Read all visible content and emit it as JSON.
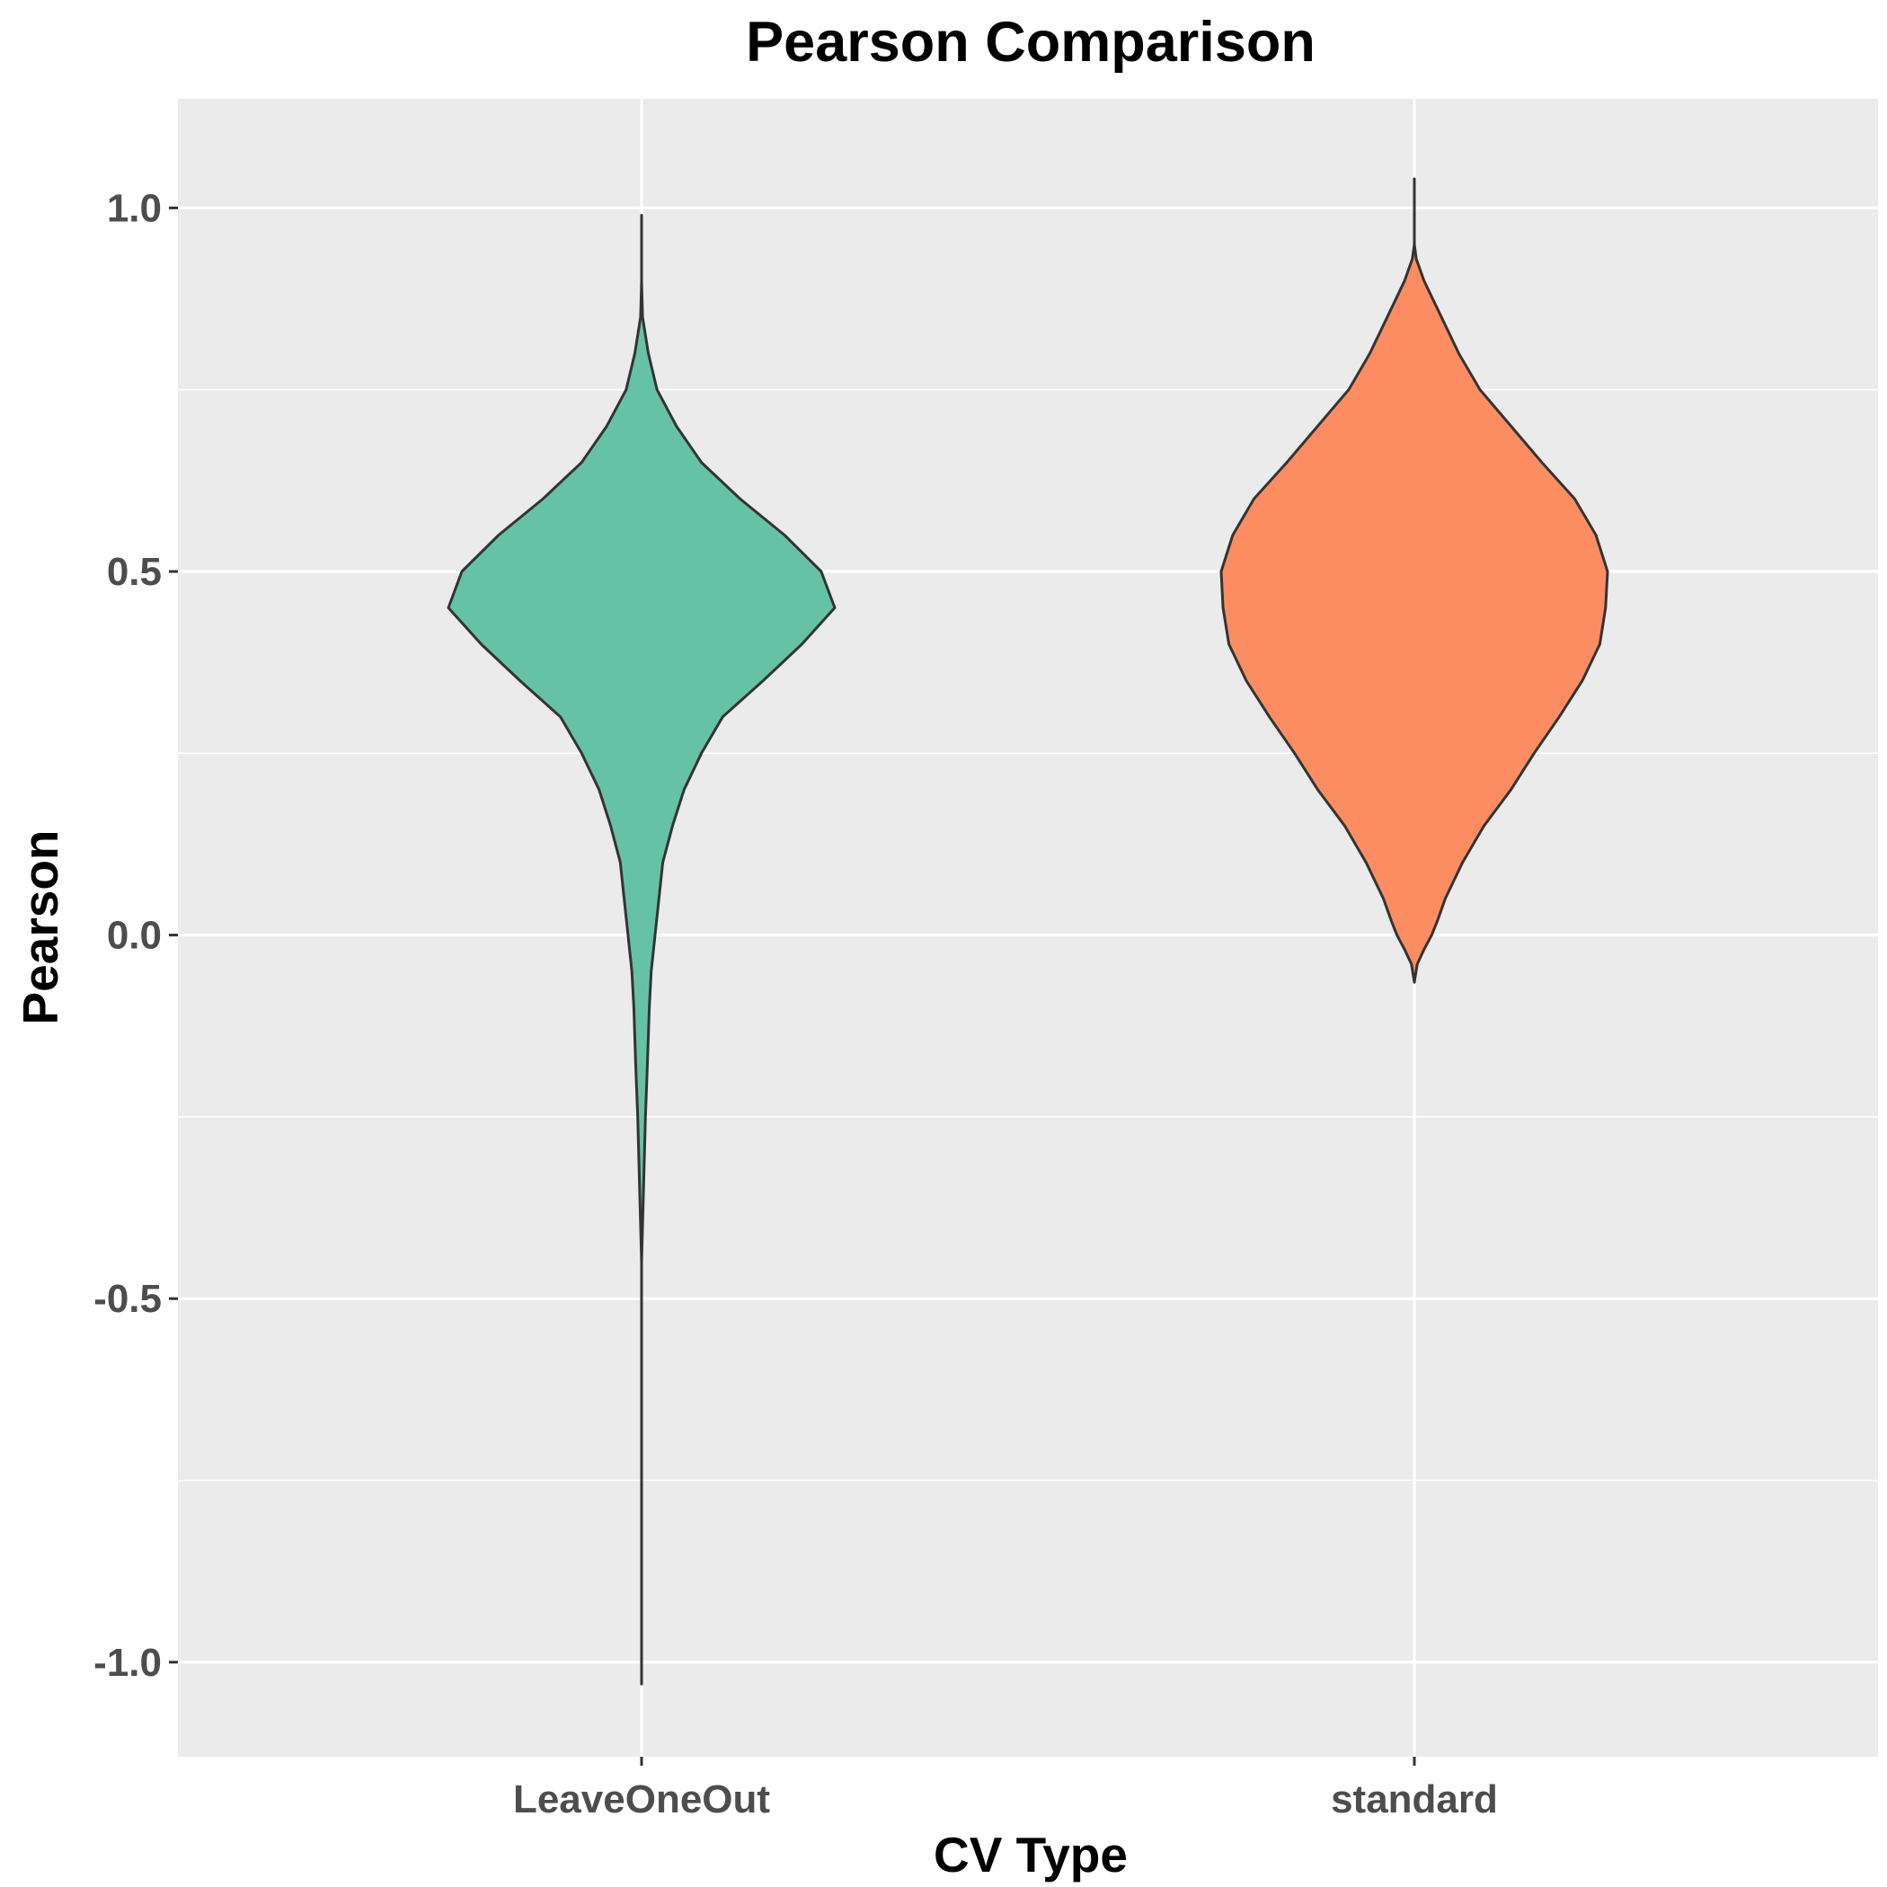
{
  "chart_data": {
    "type": "violin",
    "title": "Pearson Comparison",
    "xlabel": "CV Type",
    "ylabel": "Pearson",
    "categories": [
      "LeaveOneOut",
      "standard"
    ],
    "ylim": [
      -1.13,
      1.15
    ],
    "yticks": [
      -1.0,
      -0.5,
      0.0,
      0.5,
      1.0
    ],
    "ytick_labels": [
      "-1.0",
      "-0.5",
      "0.0",
      "0.5",
      "1.0"
    ],
    "grid": true,
    "legend": "none",
    "colors": {
      "panel": "#ebebeb",
      "outline": "#333333"
    },
    "series": [
      {
        "category": "LeaveOneOut",
        "color": "#66c2a5",
        "min": -1.03,
        "max": 0.99,
        "density_profile": [
          [
            -1.03,
            0.0
          ],
          [
            -0.75,
            0.0
          ],
          [
            -0.45,
            0.0
          ],
          [
            -0.25,
            0.02
          ],
          [
            -0.18,
            0.03
          ],
          [
            -0.1,
            0.04
          ],
          [
            -0.05,
            0.05
          ],
          [
            0.0,
            0.07
          ],
          [
            0.05,
            0.09
          ],
          [
            0.1,
            0.11
          ],
          [
            0.15,
            0.16
          ],
          [
            0.2,
            0.22
          ],
          [
            0.25,
            0.31
          ],
          [
            0.3,
            0.42
          ],
          [
            0.35,
            0.63
          ],
          [
            0.4,
            0.83
          ],
          [
            0.45,
            1.0
          ],
          [
            0.5,
            0.93
          ],
          [
            0.55,
            0.74
          ],
          [
            0.6,
            0.51
          ],
          [
            0.65,
            0.31
          ],
          [
            0.7,
            0.18
          ],
          [
            0.75,
            0.08
          ],
          [
            0.8,
            0.035
          ],
          [
            0.85,
            0.005
          ],
          [
            0.9,
            0.0
          ],
          [
            0.99,
            0.0
          ]
        ]
      },
      {
        "category": "standard",
        "color": "#fc8d62",
        "min": -0.065,
        "max": 1.04,
        "density_profile": [
          [
            -0.065,
            0.0
          ],
          [
            -0.04,
            0.015
          ],
          [
            -0.02,
            0.05
          ],
          [
            0.0,
            0.09
          ],
          [
            0.02,
            0.12
          ],
          [
            0.05,
            0.16
          ],
          [
            0.1,
            0.25
          ],
          [
            0.15,
            0.36
          ],
          [
            0.2,
            0.5
          ],
          [
            0.25,
            0.62
          ],
          [
            0.3,
            0.75
          ],
          [
            0.35,
            0.87
          ],
          [
            0.4,
            0.96
          ],
          [
            0.45,
            0.99
          ],
          [
            0.5,
            1.0
          ],
          [
            0.55,
            0.94
          ],
          [
            0.6,
            0.83
          ],
          [
            0.65,
            0.66
          ],
          [
            0.7,
            0.5
          ],
          [
            0.75,
            0.34
          ],
          [
            0.8,
            0.23
          ],
          [
            0.85,
            0.14
          ],
          [
            0.9,
            0.05
          ],
          [
            0.93,
            0.01
          ],
          [
            0.95,
            0.0
          ],
          [
            1.04,
            0.0
          ]
        ]
      }
    ]
  }
}
